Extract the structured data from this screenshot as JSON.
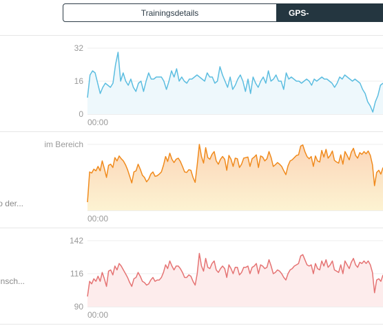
{
  "tabs": [
    {
      "label": "Trainingsdetails",
      "active": false
    },
    {
      "label": "GPS-",
      "active": true
    }
  ],
  "charts": [
    {
      "name": "speed",
      "side_label": "",
      "chart_data": {
        "type": "area",
        "color": "#5bbde0",
        "fill": "#eef8fc",
        "y_ticks": [
          "32",
          "16",
          "0"
        ],
        "ylim": [
          0,
          32
        ],
        "x_tick": "00:00",
        "values": [
          8,
          19,
          21,
          20,
          15,
          10,
          13,
          15,
          14,
          13,
          15,
          24,
          30,
          16,
          20,
          16,
          14,
          17,
          13,
          11,
          15,
          16,
          11,
          16,
          20,
          17,
          17,
          18,
          18,
          18,
          16,
          12,
          16,
          21,
          18,
          22,
          16,
          18,
          16,
          15,
          17,
          17,
          18,
          19,
          18,
          17,
          16,
          20,
          18,
          18,
          15,
          16,
          23,
          19,
          16,
          13,
          18,
          12,
          14,
          17,
          19,
          16,
          11,
          17,
          10,
          18,
          15,
          13,
          16,
          18,
          15,
          21,
          16,
          17,
          19,
          16,
          16,
          12,
          20,
          17,
          18,
          17,
          16,
          16,
          15,
          16,
          17,
          16,
          14,
          17,
          16,
          17,
          18,
          17,
          17,
          16,
          15,
          13,
          15,
          18,
          17,
          19,
          18,
          17,
          16,
          17,
          16,
          15,
          12,
          10,
          6,
          4,
          1,
          6,
          9,
          14,
          15
        ]
      }
    },
    {
      "name": "heart-zone",
      "side_label": "o der...",
      "chart_data": {
        "type": "area",
        "color": "#f08a1c",
        "fill_top": "#fbd5b8",
        "fill_bottom": "#fdf3d2",
        "y_label": "im Bereich",
        "x_tick": "00:00",
        "values": [
          15,
          70,
          68,
          75,
          72,
          80,
          72,
          90,
          76,
          60,
          82,
          84,
          78,
          96,
          90,
          99,
          94,
          90,
          83,
          74,
          62,
          50,
          70,
          72,
          84,
          75,
          64,
          60,
          52,
          57,
          66,
          70,
          62,
          63,
          66,
          70,
          82,
          98,
          89,
          104,
          93,
          87,
          93,
          95,
          89,
          80,
          70,
          69,
          74,
          73,
          60,
          51,
          83,
          120,
          98,
          86,
          114,
          96,
          93,
          102,
          107,
          90,
          84,
          93,
          98,
          93,
          73,
          100,
          93,
          80,
          95,
          94,
          78,
          84,
          95,
          96,
          97,
          80,
          94,
          97,
          101,
          78,
          99,
          97,
          90,
          94,
          107,
          96,
          80,
          83,
          87,
          84,
          80,
          72,
          65,
          81,
          90,
          92,
          96,
          100,
          101,
          117,
          119,
          107,
          98,
          94,
          98,
          80,
          99,
          90,
          88,
          109,
          97,
          111,
          95,
          100,
          108,
          91,
          88,
          86,
          101,
          84,
          107,
          100,
          92,
          106,
          113,
          100,
          95,
          105,
          102,
          107,
          103,
          108,
          100,
          83,
          45,
          69,
          73,
          66,
          78
        ]
      }
    },
    {
      "name": "heart-rate",
      "side_label": "nsch...",
      "chart_data": {
        "type": "area",
        "color": "#e57373",
        "fill": "#fdecec",
        "y_ticks": [
          "142",
          "116",
          "90"
        ],
        "ylim": [
          90,
          142
        ],
        "x_tick": "00:00",
        "values": [
          98,
          110,
          108,
          112,
          110,
          114,
          110,
          117,
          112,
          106,
          118,
          119,
          115,
          122,
          119,
          124,
          122,
          119,
          116,
          113,
          109,
          106,
          112,
          113,
          117,
          114,
          110,
          109,
          107,
          108,
          111,
          113,
          110,
          111,
          111,
          113,
          117,
          123,
          120,
          126,
          122,
          119,
          122,
          122,
          120,
          117,
          113,
          113,
          115,
          114,
          110,
          107,
          116,
          132,
          122,
          118,
          128,
          121,
          120,
          124,
          126,
          119,
          117,
          120,
          122,
          120,
          113,
          123,
          120,
          116,
          121,
          121,
          115,
          117,
          121,
          121,
          122,
          116,
          121,
          122,
          124,
          116,
          123,
          122,
          120,
          121,
          127,
          122,
          116,
          117,
          119,
          118,
          116,
          113,
          111,
          116,
          119,
          120,
          122,
          123,
          124,
          130,
          131,
          127,
          123,
          122,
          123,
          116,
          124,
          120,
          119,
          126,
          122,
          127,
          121,
          123,
          126,
          119,
          118,
          117,
          123,
          116,
          126,
          123,
          120,
          125,
          128,
          123,
          121,
          125,
          124,
          126,
          124,
          126,
          123,
          117,
          101,
          111,
          112,
          110,
          115
        ]
      }
    }
  ]
}
